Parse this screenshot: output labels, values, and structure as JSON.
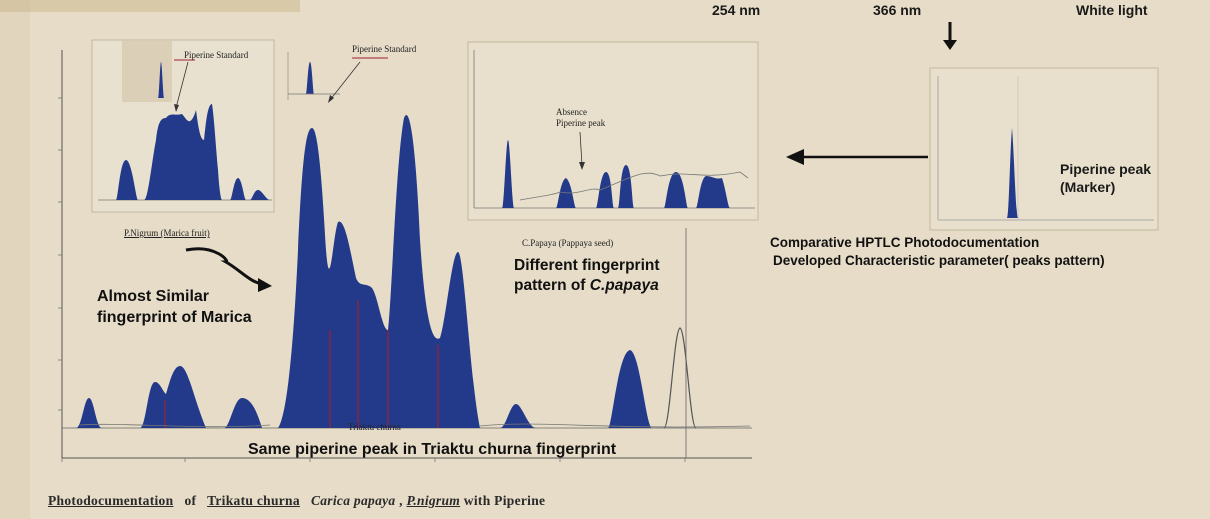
{
  "header": {
    "label_254": "254 nm",
    "label_366": "366 nm",
    "label_white": "White light"
  },
  "marker_panel": {
    "label_line1": "Piperine peak",
    "label_line2": "(Marker)"
  },
  "comparison": {
    "title": "Comparative  HPTLC Photodocumentation",
    "subtitle": "Developed Characteristic parameter( peaks pattern)"
  },
  "inset_left": {
    "label": "Piperine Standard"
  },
  "inset_middle": {
    "label": "Piperine Standard"
  },
  "inset_right": {
    "label_line1": "Absence",
    "label_line2": "Piperine peak",
    "sample_label": "C.Papaya (Pappaya seed)"
  },
  "main_chart": {
    "sample_label": "P.Nigrum (Marica fruit)",
    "bottom_label": "Triaktu churna"
  },
  "annotations": {
    "almost_line1": "Almost Similar",
    "almost_line2": "fingerprint of Marica",
    "diff_line1": "Different fingerprint",
    "diff_line2_prefix": "pattern of ",
    "diff_line2_species": "C.papaya",
    "same_peak": "Same piperine peak in Triaktu churna fingerprint"
  },
  "caption": {
    "part1": "Photodocumentation",
    "part2": "of",
    "part3": "Trikatu churna",
    "part4": "Carica papaya",
    "part5": ",",
    "part6": "P.nigrum",
    "part7": "with Piperine"
  },
  "colors": {
    "peak_fill": "#233a8a",
    "background": "#e7ddc9",
    "arrow": "#111111"
  }
}
